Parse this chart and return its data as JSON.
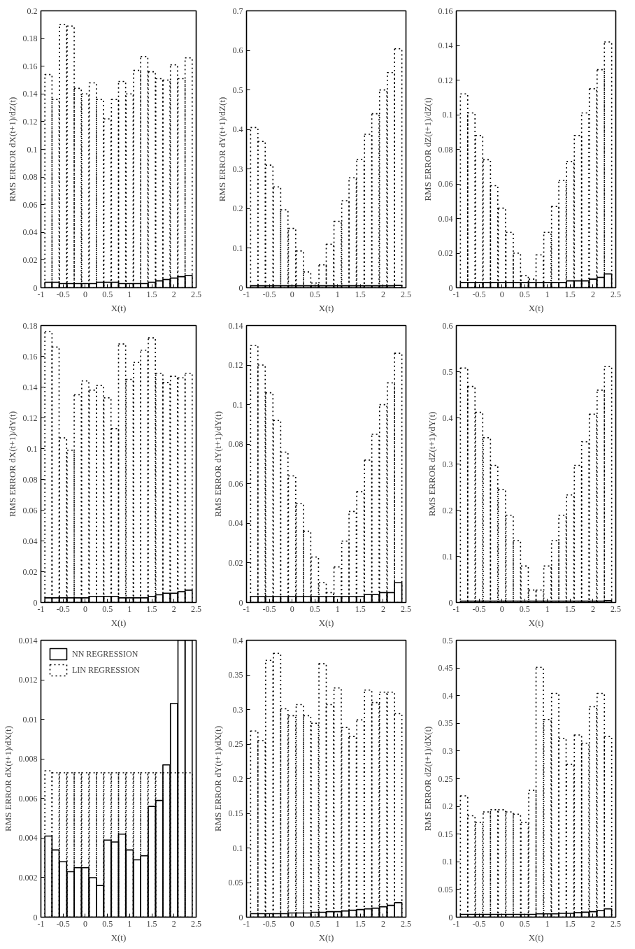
{
  "chart_data": [
    {
      "type": "bar",
      "xlabel": "X(t)",
      "ylabel": "RMS ERROR dX(t+1)/dZ(t)",
      "x": [
        -0.83,
        -0.67,
        -0.5,
        -0.33,
        -0.17,
        0,
        0.17,
        0.33,
        0.5,
        0.67,
        0.83,
        1,
        1.17,
        1.33,
        1.5,
        1.67,
        1.83,
        2,
        2.17,
        2.33
      ],
      "xlim": [
        -1,
        2.5
      ],
      "xticks": [
        -1,
        -0.5,
        0,
        0.5,
        1,
        1.5,
        2,
        2.5
      ],
      "ylim": [
        0,
        0.2
      ],
      "yticks": [
        0,
        0.02,
        0.04,
        0.06,
        0.08,
        0.1,
        0.12,
        0.14,
        0.16,
        0.18,
        0.2
      ],
      "grid": false,
      "series": [
        {
          "color": "#000000",
          "line_style": "solid",
          "values": [
            0.004,
            0.004,
            0.003,
            0.003,
            0.003,
            0.003,
            0.003,
            0.004,
            0.004,
            0.004,
            0.003,
            0.003,
            0.003,
            0.003,
            0.004,
            0.005,
            0.006,
            0.007,
            0.008,
            0.009
          ]
        },
        {
          "color": "#000000",
          "line_style": "dotted",
          "values": [
            0.154,
            0.136,
            0.19,
            0.189,
            0.144,
            0.14,
            0.148,
            0.136,
            0.122,
            0.136,
            0.149,
            0.14,
            0.157,
            0.167,
            0.156,
            0.151,
            0.15,
            0.161,
            0.151,
            0.166
          ]
        }
      ]
    },
    {
      "type": "bar",
      "xlabel": "X(t)",
      "ylabel": "RMS ERROR dY(t+1)/dZ(t)",
      "x": [
        -0.83,
        -0.67,
        -0.5,
        -0.33,
        -0.17,
        0,
        0.17,
        0.33,
        0.5,
        0.67,
        0.83,
        1,
        1.17,
        1.33,
        1.5,
        1.67,
        1.83,
        2,
        2.17,
        2.33
      ],
      "xlim": [
        -1,
        2.5
      ],
      "xticks": [
        -1,
        -0.5,
        0,
        0.5,
        1,
        1.5,
        2,
        2.5
      ],
      "ylim": [
        0,
        0.7
      ],
      "yticks": [
        0,
        0.1,
        0.2,
        0.3,
        0.4,
        0.5,
        0.6,
        0.7
      ],
      "grid": false,
      "series": [
        {
          "color": "#000000",
          "line_style": "solid",
          "values": [
            0.005,
            0.005,
            0.005,
            0.005,
            0.005,
            0.005,
            0.005,
            0.005,
            0.005,
            0.005,
            0.005,
            0.005,
            0.005,
            0.005,
            0.005,
            0.005,
            0.005,
            0.005,
            0.005,
            0.006
          ]
        },
        {
          "color": "#000000",
          "line_style": "dotted",
          "values": [
            0.405,
            0.37,
            0.31,
            0.255,
            0.197,
            0.15,
            0.093,
            0.04,
            0.012,
            0.058,
            0.11,
            0.168,
            0.22,
            0.278,
            0.324,
            0.388,
            0.44,
            0.5,
            0.544,
            0.604
          ]
        }
      ]
    },
    {
      "type": "bar",
      "xlabel": "X(t)",
      "ylabel": "RMS ERROR dZ(t+1)/dZ(t)",
      "x": [
        -0.83,
        -0.67,
        -0.5,
        -0.33,
        -0.17,
        0,
        0.17,
        0.33,
        0.5,
        0.67,
        0.83,
        1,
        1.17,
        1.33,
        1.5,
        1.67,
        1.83,
        2,
        2.17,
        2.33
      ],
      "xlim": [
        -1,
        2.5
      ],
      "xticks": [
        -1,
        -0.5,
        0,
        0.5,
        1,
        1.5,
        2,
        2.5
      ],
      "ylim": [
        0,
        0.16
      ],
      "yticks": [
        0,
        0.02,
        0.04,
        0.06,
        0.08,
        0.1,
        0.12,
        0.14,
        0.16
      ],
      "grid": false,
      "series": [
        {
          "color": "#000000",
          "line_style": "solid",
          "values": [
            0.003,
            0.003,
            0.003,
            0.003,
            0.003,
            0.003,
            0.003,
            0.003,
            0.003,
            0.003,
            0.003,
            0.003,
            0.003,
            0.003,
            0.004,
            0.004,
            0.004,
            0.005,
            0.006,
            0.008
          ]
        },
        {
          "color": "#000000",
          "line_style": "dotted",
          "values": [
            0.112,
            0.101,
            0.088,
            0.074,
            0.059,
            0.046,
            0.032,
            0.02,
            0.007,
            0.005,
            0.019,
            0.032,
            0.047,
            0.062,
            0.073,
            0.088,
            0.101,
            0.115,
            0.126,
            0.142
          ]
        }
      ]
    },
    {
      "type": "bar",
      "xlabel": "X(t)",
      "ylabel": "RMS ERROR dX(t+1)/dY(t)",
      "x": [
        -0.83,
        -0.67,
        -0.5,
        -0.33,
        -0.17,
        0,
        0.17,
        0.33,
        0.5,
        0.67,
        0.83,
        1,
        1.17,
        1.33,
        1.5,
        1.67,
        1.83,
        2,
        2.17,
        2.33
      ],
      "xlim": [
        -1,
        2.5
      ],
      "xticks": [
        -1,
        -0.5,
        0,
        0.5,
        1,
        1.5,
        2,
        2.5
      ],
      "ylim": [
        0,
        0.18
      ],
      "yticks": [
        0,
        0.02,
        0.04,
        0.06,
        0.08,
        0.1,
        0.12,
        0.14,
        0.16,
        0.18
      ],
      "grid": false,
      "series": [
        {
          "color": "#000000",
          "line_style": "solid",
          "values": [
            0.003,
            0.003,
            0.003,
            0.003,
            0.003,
            0.003,
            0.004,
            0.004,
            0.004,
            0.004,
            0.003,
            0.003,
            0.003,
            0.003,
            0.004,
            0.005,
            0.006,
            0.006,
            0.007,
            0.008
          ]
        },
        {
          "color": "#000000",
          "line_style": "dotted",
          "values": [
            0.176,
            0.166,
            0.107,
            0.099,
            0.135,
            0.144,
            0.138,
            0.141,
            0.133,
            0.113,
            0.168,
            0.145,
            0.156,
            0.164,
            0.172,
            0.149,
            0.143,
            0.147,
            0.146,
            0.149
          ]
        }
      ]
    },
    {
      "type": "bar",
      "xlabel": "X(t)",
      "ylabel": "RMS ERROR dY(t+1)/dY(t)",
      "x": [
        -0.83,
        -0.67,
        -0.5,
        -0.33,
        -0.17,
        0,
        0.17,
        0.33,
        0.5,
        0.67,
        0.83,
        1,
        1.17,
        1.33,
        1.5,
        1.67,
        1.83,
        2,
        2.17,
        2.33
      ],
      "xlim": [
        -1,
        2.5
      ],
      "xticks": [
        -1,
        -0.5,
        0,
        0.5,
        1,
        1.5,
        2,
        2.5
      ],
      "ylim": [
        0,
        0.14
      ],
      "yticks": [
        0,
        0.02,
        0.04,
        0.06,
        0.08,
        0.1,
        0.12,
        0.14
      ],
      "grid": false,
      "series": [
        {
          "color": "#000000",
          "line_style": "solid",
          "values": [
            0.003,
            0.003,
            0.003,
            0.003,
            0.003,
            0.003,
            0.003,
            0.003,
            0.003,
            0.003,
            0.003,
            0.003,
            0.003,
            0.003,
            0.003,
            0.004,
            0.004,
            0.005,
            0.005,
            0.01
          ]
        },
        {
          "color": "#000000",
          "line_style": "dotted",
          "values": [
            0.13,
            0.12,
            0.106,
            0.092,
            0.076,
            0.064,
            0.05,
            0.036,
            0.023,
            0.01,
            0.005,
            0.018,
            0.031,
            0.046,
            0.056,
            0.072,
            0.085,
            0.1,
            0.111,
            0.126
          ]
        }
      ]
    },
    {
      "type": "bar",
      "xlabel": "X(t)",
      "ylabel": "RMS ERROR dZ(t+1)/dY(t)",
      "x": [
        -0.83,
        -0.67,
        -0.5,
        -0.33,
        -0.17,
        0,
        0.17,
        0.33,
        0.5,
        0.67,
        0.83,
        1,
        1.17,
        1.33,
        1.5,
        1.67,
        1.83,
        2,
        2.17,
        2.33
      ],
      "xlim": [
        -1,
        2.5
      ],
      "xticks": [
        -1,
        -0.5,
        0,
        0.5,
        1,
        1.5,
        2,
        2.5
      ],
      "ylim": [
        0,
        0.6
      ],
      "yticks": [
        0,
        0.1,
        0.2,
        0.3,
        0.4,
        0.5,
        0.6
      ],
      "grid": false,
      "series": [
        {
          "color": "#000000",
          "line_style": "solid",
          "values": [
            0.003,
            0.003,
            0.003,
            0.003,
            0.003,
            0.003,
            0.003,
            0.003,
            0.003,
            0.003,
            0.003,
            0.003,
            0.003,
            0.003,
            0.003,
            0.003,
            0.003,
            0.003,
            0.003,
            0.004
          ]
        },
        {
          "color": "#000000",
          "line_style": "dotted",
          "values": [
            0.508,
            0.468,
            0.412,
            0.357,
            0.297,
            0.245,
            0.189,
            0.134,
            0.079,
            0.027,
            0.027,
            0.079,
            0.134,
            0.189,
            0.233,
            0.297,
            0.348,
            0.408,
            0.46,
            0.511
          ]
        }
      ]
    },
    {
      "type": "bar",
      "xlabel": "X(t)",
      "ylabel": "RMS ERROR dX(t+1)/dX(t)",
      "x": [
        -0.83,
        -0.67,
        -0.5,
        -0.33,
        -0.17,
        0,
        0.17,
        0.33,
        0.5,
        0.67,
        0.83,
        1,
        1.17,
        1.33,
        1.5,
        1.67,
        1.83,
        2,
        2.17,
        2.33
      ],
      "xlim": [
        -1,
        2.5
      ],
      "xticks": [
        -1,
        -0.5,
        0,
        0.5,
        1,
        1.5,
        2,
        2.5
      ],
      "ylim": [
        0,
        0.014
      ],
      "yticks": [
        0,
        0.002,
        0.004,
        0.006,
        0.008,
        0.01,
        0.012,
        0.014
      ],
      "grid": false,
      "legend": "top left",
      "series": [
        {
          "name": "NN REGRESSION",
          "color": "#000000",
          "line_style": "solid",
          "values": [
            0.0041,
            0.0034,
            0.0028,
            0.0023,
            0.0025,
            0.0025,
            0.002,
            0.0016,
            0.0039,
            0.0038,
            0.0042,
            0.0034,
            0.0029,
            0.0031,
            0.0056,
            0.0059,
            0.0077,
            0.0108,
            0.014,
            0.014
          ]
        },
        {
          "name": "LIN REGRESSION",
          "color": "#000000",
          "line_style": "dotted",
          "values": [
            0.0074,
            0.0073,
            0.0073,
            0.0073,
            0.0073,
            0.0073,
            0.0073,
            0.0073,
            0.0073,
            0.0073,
            0.0073,
            0.0073,
            0.0073,
            0.0073,
            0.0073,
            0.0073,
            0.0073,
            0.0073,
            0.0073,
            0.0073
          ]
        }
      ]
    },
    {
      "type": "bar",
      "xlabel": "X(t)",
      "ylabel": "RMS ERROR dY(t+1)/dX(t)",
      "x": [
        -0.83,
        -0.67,
        -0.5,
        -0.33,
        -0.17,
        0,
        0.17,
        0.33,
        0.5,
        0.67,
        0.83,
        1,
        1.17,
        1.33,
        1.5,
        1.67,
        1.83,
        2,
        2.17,
        2.33
      ],
      "xlim": [
        -1,
        2.5
      ],
      "xticks": [
        -1,
        -0.5,
        0,
        0.5,
        1,
        1.5,
        2,
        2.5
      ],
      "ylim": [
        0,
        0.4
      ],
      "yticks": [
        0,
        0.05,
        0.1,
        0.15,
        0.2,
        0.25,
        0.3,
        0.35,
        0.4
      ],
      "grid": false,
      "series": [
        {
          "color": "#000000",
          "line_style": "solid",
          "values": [
            0.005,
            0.005,
            0.005,
            0.005,
            0.005,
            0.006,
            0.006,
            0.006,
            0.007,
            0.007,
            0.008,
            0.008,
            0.009,
            0.01,
            0.011,
            0.012,
            0.013,
            0.015,
            0.017,
            0.021
          ]
        },
        {
          "color": "#000000",
          "line_style": "dotted",
          "values": [
            0.269,
            0.255,
            0.371,
            0.381,
            0.301,
            0.291,
            0.307,
            0.291,
            0.28,
            0.366,
            0.307,
            0.331,
            0.274,
            0.261,
            0.285,
            0.328,
            0.31,
            0.325,
            0.325,
            0.294
          ]
        }
      ]
    },
    {
      "type": "bar",
      "xlabel": "X(t)",
      "ylabel": "RMS ERROR dZ(t+1)/dX(t)",
      "x": [
        -0.83,
        -0.67,
        -0.5,
        -0.33,
        -0.17,
        0,
        0.17,
        0.33,
        0.5,
        0.67,
        0.83,
        1,
        1.17,
        1.33,
        1.5,
        1.67,
        1.83,
        2,
        2.17,
        2.33
      ],
      "xlim": [
        -1,
        2.5
      ],
      "xticks": [
        -1,
        -0.5,
        0,
        0.5,
        1,
        1.5,
        2,
        2.5
      ],
      "ylim": [
        0,
        0.5
      ],
      "yticks": [
        0,
        0.05,
        0.1,
        0.15,
        0.2,
        0.25,
        0.3,
        0.35,
        0.4,
        0.45,
        0.5
      ],
      "grid": false,
      "series": [
        {
          "color": "#000000",
          "line_style": "solid",
          "values": [
            0.005,
            0.005,
            0.005,
            0.005,
            0.005,
            0.005,
            0.005,
            0.005,
            0.005,
            0.005,
            0.006,
            0.006,
            0.006,
            0.007,
            0.007,
            0.008,
            0.009,
            0.01,
            0.012,
            0.015
          ]
        },
        {
          "color": "#000000",
          "line_style": "dotted",
          "values": [
            0.219,
            0.183,
            0.171,
            0.19,
            0.194,
            0.194,
            0.19,
            0.186,
            0.171,
            0.229,
            0.451,
            0.357,
            0.404,
            0.323,
            0.276,
            0.329,
            0.314,
            0.38,
            0.404,
            0.326
          ]
        }
      ]
    }
  ]
}
